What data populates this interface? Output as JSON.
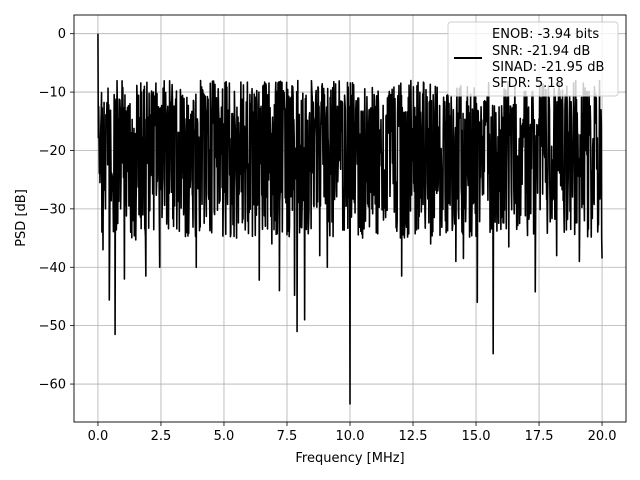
{
  "chart_data": {
    "type": "line",
    "xlabel": "Frequency [MHz]",
    "ylabel": "PSD [dB]",
    "xlim": [
      -0.95,
      20.95
    ],
    "ylim": [
      -66.5,
      3.2
    ],
    "x_ticks": [
      0.0,
      2.5,
      5.0,
      7.5,
      10.0,
      12.5,
      15.0,
      17.5,
      20.0
    ],
    "x_tick_labels": [
      "0.0",
      "2.5",
      "5.0",
      "7.5",
      "10.0",
      "12.5",
      "15.0",
      "17.5",
      "20.0"
    ],
    "y_ticks": [
      0,
      -10,
      -20,
      -30,
      -40,
      -50,
      -60
    ],
    "y_tick_labels": [
      "0",
      "−10",
      "−20",
      "−30",
      "−40",
      "−50",
      "−60"
    ],
    "grid": true,
    "legend_position": "top-right",
    "legend_lines": [
      "ENOB: -3.94 bits",
      "SNR: -21.94 dB",
      "SINAD: -21.95 dB",
      "SFDR: 5.18"
    ],
    "series": [
      {
        "color": "#000000",
        "noise_band": {
          "upper_dB": -10,
          "lower_dB": -30,
          "median_dB": -19
        },
        "points": [
          [
            0.0,
            0.0
          ],
          [
            0.03,
            -12.5
          ],
          [
            0.08,
            -25.5
          ],
          [
            0.1,
            -21.0
          ],
          [
            0.2,
            -37.0
          ],
          [
            0.3,
            -30.0
          ],
          [
            0.45,
            -45.6
          ],
          [
            0.6,
            -27.0
          ],
          [
            0.68,
            -51.5
          ],
          [
            0.9,
            -30.0
          ],
          [
            1.05,
            -42.0
          ],
          [
            1.3,
            -34.0
          ],
          [
            1.5,
            -35.3
          ],
          [
            1.9,
            -41.5
          ],
          [
            2.45,
            -40.0
          ],
          [
            3.0,
            -33.0
          ],
          [
            3.9,
            -40.0
          ],
          [
            5.5,
            -35.0
          ],
          [
            6.4,
            -42.2
          ],
          [
            6.9,
            -36.0
          ],
          [
            7.2,
            -44.0
          ],
          [
            7.8,
            -44.8
          ],
          [
            7.9,
            -51.0
          ],
          [
            8.2,
            -49.0
          ],
          [
            8.8,
            -38.0
          ],
          [
            9.1,
            -40.0
          ],
          [
            10.0,
            -63.4
          ],
          [
            10.5,
            -35.0
          ],
          [
            12.05,
            -41.5
          ],
          [
            13.2,
            -36.0
          ],
          [
            14.2,
            -39.0
          ],
          [
            14.5,
            -38.5
          ],
          [
            15.05,
            -46.0
          ],
          [
            15.68,
            -54.8
          ],
          [
            16.3,
            -36.5
          ],
          [
            17.35,
            -44.2
          ],
          [
            18.2,
            -38.0
          ],
          [
            19.1,
            -39.0
          ],
          [
            20.0,
            -38.5
          ]
        ]
      }
    ]
  }
}
